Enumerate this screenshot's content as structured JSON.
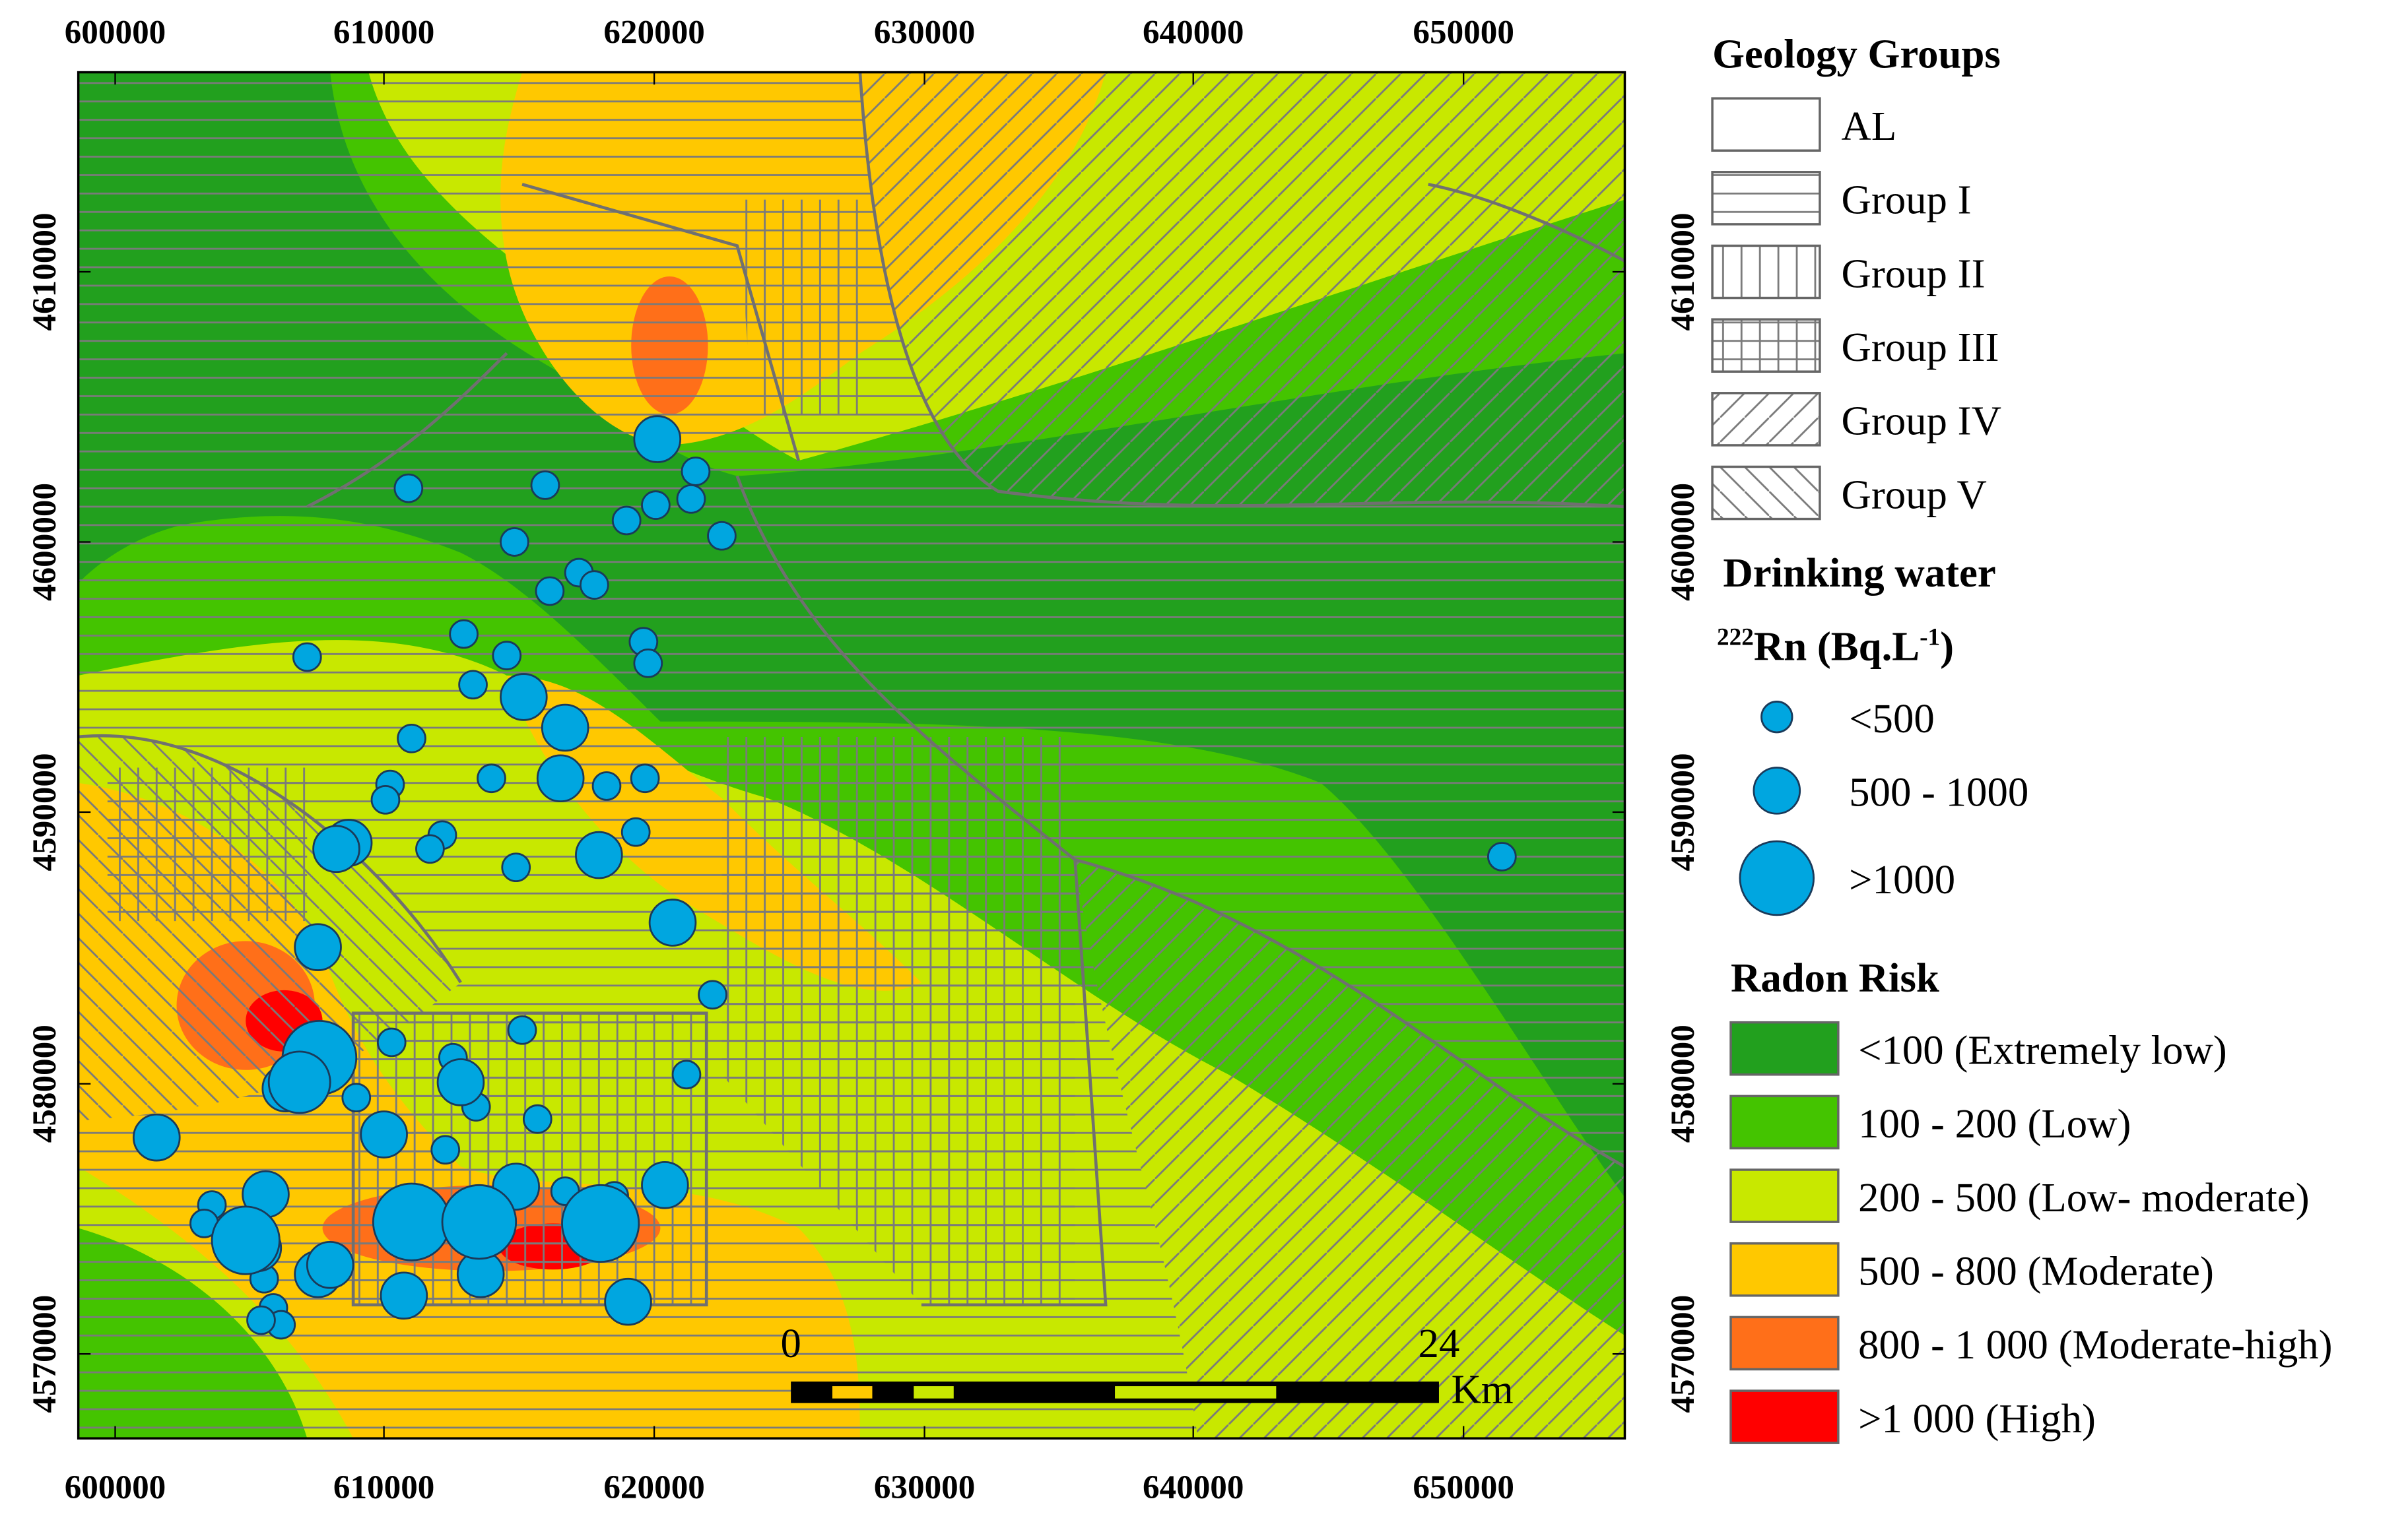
{
  "map": {
    "x_labels": [
      "600000",
      "610000",
      "620000",
      "630000",
      "640000",
      "650000"
    ],
    "y_labels": [
      "4610000",
      "4600000",
      "4590000",
      "4580000",
      "4570000"
    ],
    "scale_bar": {
      "start": "0",
      "end": "24",
      "unit": "Km"
    }
  },
  "legend": {
    "geology_title": "Geology Groups",
    "geology": [
      "AL",
      "Group I",
      "Group II",
      "Group III",
      "Group IV",
      "Group V"
    ],
    "water_title": "Drinking water",
    "water_unit": [
      "222",
      "Rn (Bq.L",
      "-1",
      ")"
    ],
    "water_classes": [
      "<500",
      "500 - 1000",
      ">1000"
    ],
    "risk_title": "Radon Risk",
    "risk_classes": [
      "<100 (Extremely low)",
      "100 - 200 (Low)",
      "200 - 500 (Low- moderate)",
      "500 - 800 (Moderate)",
      "800 - 1 000 (Moderate-high)",
      ">1 000 (High)"
    ]
  }
}
